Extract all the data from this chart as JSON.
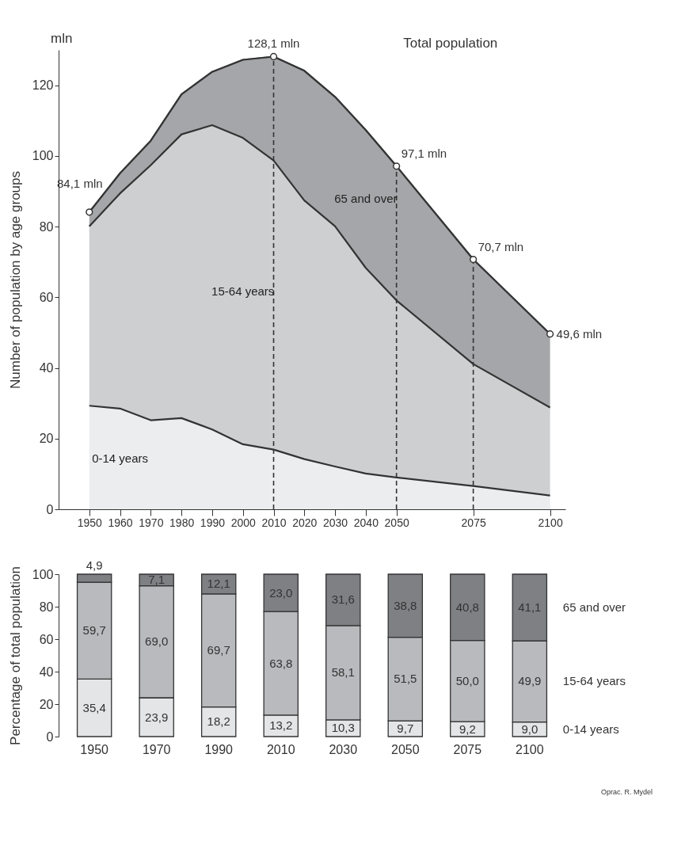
{
  "chart_data": [
    {
      "type": "area",
      "ylabel": "Number of population by age groups",
      "stacked": true,
      "x": [
        1950,
        1960,
        1970,
        1980,
        1990,
        2000,
        2010,
        2020,
        2030,
        2040,
        2050,
        2075,
        2100
      ],
      "series": [
        {
          "name": "0-14 years",
          "color": "#e4e5e7",
          "values": [
            29.3,
            28.5,
            25.2,
            25.8,
            22.6,
            18.4,
            16.9,
            14.2,
            12.1,
            10.1,
            9.0,
            6.6,
            3.9
          ]
        },
        {
          "name": "15-64 years",
          "color": "#b9babe",
          "values": [
            50.8,
            60.9,
            72.2,
            80.3,
            86.1,
            86.7,
            81.8,
            73.2,
            68.0,
            58.2,
            50.1,
            34.5,
            24.9
          ]
        },
        {
          "name": "65 and over",
          "color": "#7f8084",
          "values": [
            4.0,
            5.7,
            6.9,
            11.3,
            15.1,
            22.1,
            29.4,
            36.7,
            36.6,
            39.0,
            38.0,
            29.6,
            20.8
          ]
        }
      ],
      "xlim": [
        1940,
        2105
      ],
      "xticks": [
        1950,
        1960,
        1970,
        1980,
        1990,
        2000,
        2010,
        2020,
        2030,
        2040,
        2050,
        2075,
        2100
      ],
      "ylim": [
        0,
        130
      ],
      "yticks": [
        0,
        20,
        40,
        60,
        80,
        100,
        120
      ],
      "ref_lines": [
        {
          "axis": "x",
          "value": 2010,
          "line_style": "dashed"
        },
        {
          "axis": "x",
          "value": 2050,
          "line_style": "dashed"
        },
        {
          "axis": "x",
          "value": 2075,
          "line_style": "dashed"
        }
      ],
      "annotations": [
        "mln",
        "Total population",
        {
          "text": "84,1 mln",
          "x": 1950,
          "y": 84.1
        },
        {
          "text": "128,1 mln",
          "x": 2010,
          "y": 128.1
        },
        {
          "text": "97,1 mln",
          "x": 2050,
          "y": 97.1
        },
        {
          "text": "70,7 mln",
          "x": 2075,
          "y": 70.7
        },
        {
          "text": "49,6 mln",
          "x": 2100,
          "y": 49.6
        }
      ]
    },
    {
      "type": "bar",
      "ylabel": "Percentage of total population",
      "stacked": true,
      "categories": [
        "1950",
        "1970",
        "1990",
        "2010",
        "2030",
        "2050",
        "2075",
        "2100"
      ],
      "series": [
        {
          "name": "0-14 years",
          "color": "#e4e5e7",
          "values": [
            35.4,
            23.9,
            18.2,
            13.2,
            10.3,
            9.7,
            9.2,
            9.0
          ],
          "value_labels": [
            "35,4",
            "23,9",
            "18,2",
            "13,2",
            "10,3",
            "9,7",
            "9,2",
            "9,0"
          ]
        },
        {
          "name": "15-64 years",
          "color": "#b9babe",
          "values": [
            59.7,
            69.0,
            69.7,
            63.8,
            58.1,
            51.5,
            50.0,
            49.9
          ],
          "value_labels": [
            "59,7",
            "69,0",
            "69,7",
            "63,8",
            "58,1",
            "51,5",
            "50,0",
            "49,9"
          ]
        },
        {
          "name": "65 and over",
          "color": "#7f8084",
          "values": [
            4.9,
            7.1,
            12.1,
            23.0,
            31.6,
            38.8,
            40.8,
            41.1
          ],
          "value_labels": [
            "4,9",
            "7,1",
            "12,1",
            "23,0",
            "31,6",
            "38,8",
            "40,8",
            "41,1"
          ]
        }
      ],
      "ylim": [
        0,
        100
      ],
      "yticks": [
        0,
        20,
        40,
        60,
        80,
        100
      ],
      "annotations": [
        "Oprac. R. Mydel"
      ]
    }
  ]
}
